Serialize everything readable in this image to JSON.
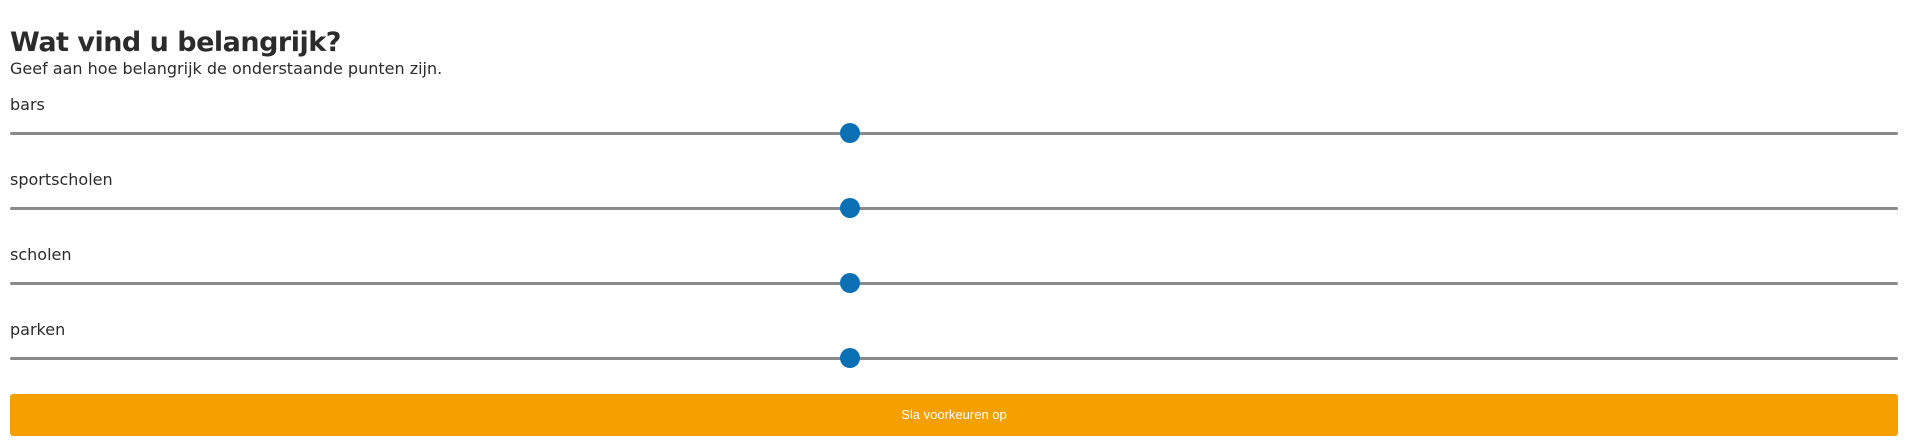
{
  "header": {
    "title": "Wat vind u belangrijk?",
    "subtitle": "Geef aan hoe belangrijk de onderstaande punten zijn."
  },
  "sliders": [
    {
      "label": "bars",
      "value_fraction": 0.445
    },
    {
      "label": "sportscholen",
      "value_fraction": 0.445
    },
    {
      "label": "scholen",
      "value_fraction": 0.445
    },
    {
      "label": "parken",
      "value_fraction": 0.445
    }
  ],
  "colors": {
    "thumb": "#0a6fb3",
    "track": "#8a8a8a",
    "button": "#f5a000"
  },
  "actions": {
    "save_label": "Sla voorkeuren op"
  }
}
